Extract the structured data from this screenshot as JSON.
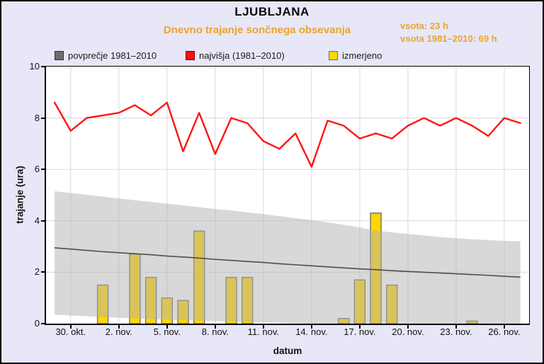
{
  "window": {
    "background_color": "#e7e7f8",
    "accent_color": "#eba431"
  },
  "header": {
    "title": "LJUBLJANA",
    "subtitle": "Dnevno trajanje sončnega obsevanja",
    "sum_measured": "vsota: 23 h",
    "sum_longterm": "vsota 1981–2010: 69 h"
  },
  "legend": [
    {
      "label": "povprečje 1981–2010",
      "color": "#6e6e6e",
      "border": "#333333"
    },
    {
      "label": "najvišja (1981–2010)",
      "color": "#ff0f0f",
      "border": "#7a0000"
    },
    {
      "label": "izmerjeno",
      "color": "#ffd700",
      "border": "#6e6e6e"
    }
  ],
  "axes": {
    "xlabel": "datum",
    "ylabel": "trajanje (ura)"
  },
  "chart_data": {
    "type": "composite",
    "title": "Dnevno trajanje sončnega obsevanja — LJUBLJANA",
    "xlabel": "datum",
    "ylabel": "trajanje (ura)",
    "ylim": [
      0,
      10
    ],
    "yticks": [
      0,
      2,
      4,
      6,
      8,
      10
    ],
    "grid": true,
    "legend_position": "top",
    "dates": [
      "29. okt.",
      "30. okt.",
      "31. okt.",
      "1. nov.",
      "2. nov.",
      "3. nov.",
      "4. nov.",
      "5. nov.",
      "6. nov.",
      "7. nov.",
      "8. nov.",
      "9. nov.",
      "10. nov.",
      "11. nov.",
      "12. nov.",
      "13. nov.",
      "14. nov.",
      "15. nov.",
      "16. nov.",
      "17. nov.",
      "18. nov.",
      "19. nov.",
      "20. nov.",
      "21. nov.",
      "22. nov.",
      "23. nov.",
      "24. nov.",
      "25. nov.",
      "26. nov.",
      "27. nov."
    ],
    "xticks": [
      {
        "day": 1,
        "label": "30. okt."
      },
      {
        "day": 4,
        "label": "2. nov."
      },
      {
        "day": 7,
        "label": "5. nov."
      },
      {
        "day": 10,
        "label": "8. nov."
      },
      {
        "day": 13,
        "label": "11. nov."
      },
      {
        "day": 16,
        "label": "14. nov."
      },
      {
        "day": 19,
        "label": "17. nov."
      },
      {
        "day": 22,
        "label": "20. nov."
      },
      {
        "day": 25,
        "label": "23. nov."
      },
      {
        "day": 28,
        "label": "26. nov."
      }
    ],
    "series": [
      {
        "name": "najvišja (1981–2010)",
        "type": "line",
        "color": "#ff1414",
        "width": 2.4,
        "values": [
          8.6,
          7.5,
          8.0,
          8.1,
          8.2,
          8.5,
          8.1,
          8.6,
          6.7,
          8.2,
          6.6,
          8.0,
          7.8,
          7.1,
          6.8,
          7.4,
          6.1,
          7.9,
          7.7,
          7.2,
          7.4,
          7.2,
          7.7,
          8.0,
          7.7,
          8.0,
          7.7,
          7.3,
          8.0,
          7.8
        ]
      },
      {
        "name": "povprečje 1981–2010",
        "type": "line",
        "color": "#4d4d4d",
        "width": 1.6,
        "values": [
          2.95,
          2.9,
          2.85,
          2.8,
          2.76,
          2.72,
          2.68,
          2.63,
          2.59,
          2.55,
          2.5,
          2.46,
          2.42,
          2.38,
          2.33,
          2.29,
          2.25,
          2.21,
          2.17,
          2.13,
          2.1,
          2.06,
          2.03,
          2.0,
          1.97,
          1.94,
          1.91,
          1.88,
          1.84,
          1.81
        ]
      },
      {
        "name": "izmerjeno",
        "type": "bar",
        "color": "#ffd700",
        "border": "#6e6e6e",
        "values": [
          null,
          null,
          null,
          1.5,
          null,
          2.7,
          1.8,
          1.0,
          0.9,
          3.6,
          null,
          1.8,
          1.8,
          null,
          null,
          null,
          null,
          null,
          0.2,
          1.7,
          4.3,
          1.5,
          null,
          null,
          null,
          null,
          0.1,
          null,
          null,
          null
        ]
      },
      {
        "name": "razpon 1981–2010",
        "type": "band",
        "color": "rgba(178,178,178,0.5)",
        "upper": [
          5.15,
          5.08,
          5.01,
          4.94,
          4.87,
          4.8,
          4.73,
          4.67,
          4.6,
          4.53,
          4.46,
          4.4,
          4.33,
          4.26,
          4.18,
          4.1,
          4.02,
          3.94,
          3.85,
          3.74,
          3.62,
          3.55,
          3.49,
          3.43,
          3.37,
          3.32,
          3.28,
          3.25,
          3.22,
          3.2
        ],
        "lower": [
          0.35,
          0.32,
          0.29,
          0.26,
          0.23,
          0.21,
          0.18,
          0.16,
          0.14,
          0.12,
          0.1,
          0.09,
          0.07,
          0.05,
          0.03,
          0.01,
          0,
          0,
          0,
          0,
          0,
          0,
          0,
          0,
          0,
          0,
          0,
          0,
          0,
          0
        ]
      }
    ],
    "grid_color": "#d9d9d9"
  }
}
